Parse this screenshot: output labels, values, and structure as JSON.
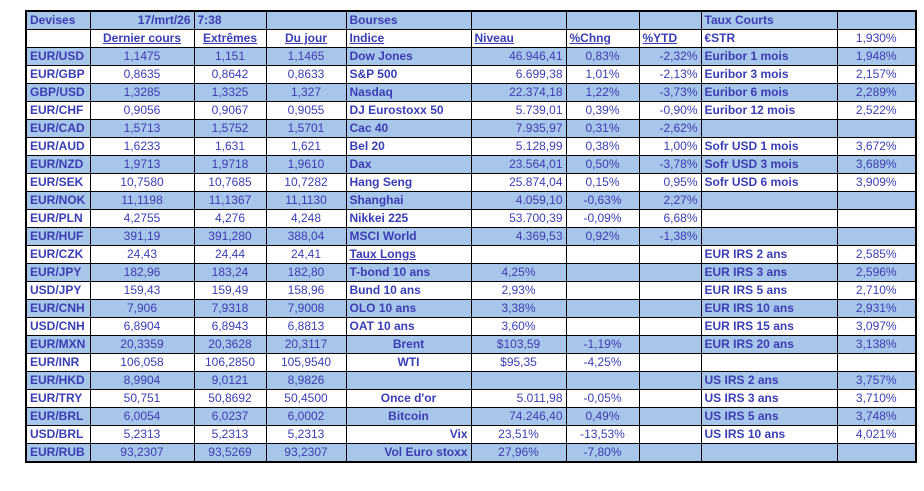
{
  "colors": {
    "row_blue": "#a8c6ea",
    "text_blue": "#3b3db5",
    "grid": "#000000"
  },
  "devises": {
    "title": "Devises",
    "date": "17/mrt/26",
    "time": "7:38",
    "headers": {
      "dernier": "Dernier cours",
      "extremes": "Extrêmes",
      "du_jour": "Du jour"
    },
    "rows": [
      {
        "pair": "EUR/USD",
        "dernier": "1,1475",
        "extremes": "1,151",
        "du_jour": "1,1465"
      },
      {
        "pair": "EUR/GBP",
        "dernier": "0,8635",
        "extremes": "0,8642",
        "du_jour": "0,8633"
      },
      {
        "pair": "GBP/USD",
        "dernier": "1,3285",
        "extremes": "1,3325",
        "du_jour": "1,327"
      },
      {
        "pair": "EUR/CHF",
        "dernier": "0,9056",
        "extremes": "0,9067",
        "du_jour": "0,9055"
      },
      {
        "pair": "EUR/CAD",
        "dernier": "1,5713",
        "extremes": "1,5752",
        "du_jour": "1,5701"
      },
      {
        "pair": "EUR/AUD",
        "dernier": "1,6233",
        "extremes": "1,631",
        "du_jour": "1,621"
      },
      {
        "pair": "EUR/NZD",
        "dernier": "1,9713",
        "extremes": "1,9718",
        "du_jour": "1,9610"
      },
      {
        "pair": "EUR/SEK",
        "dernier": "10,7580",
        "extremes": "10,7685",
        "du_jour": "10,7282"
      },
      {
        "pair": "EUR/NOK",
        "dernier": "11,1198",
        "extremes": "11,1367",
        "du_jour": "11,1130"
      },
      {
        "pair": "EUR/PLN",
        "dernier": "4,2755",
        "extremes": "4,276",
        "du_jour": "4,248"
      },
      {
        "pair": "EUR/HUF",
        "dernier": "391,19",
        "extremes": "391,280",
        "du_jour": "388,04"
      },
      {
        "pair": "EUR/CZK",
        "dernier": "24,43",
        "extremes": "24,44",
        "du_jour": "24,41"
      },
      {
        "pair": "EUR/JPY",
        "dernier": "182,96",
        "extremes": "183,24",
        "du_jour": "182,80"
      },
      {
        "pair": "USD/JPY",
        "dernier": "159,43",
        "extremes": "159,49",
        "du_jour": "158,96"
      },
      {
        "pair": "EUR/CNH",
        "dernier": "7,906",
        "extremes": "7,9318",
        "du_jour": "7,9008"
      },
      {
        "pair": "USD/CNH",
        "dernier": "6,8904",
        "extremes": "6,8943",
        "du_jour": "6,8813"
      },
      {
        "pair": "EUR/MXN",
        "dernier": "20,3359",
        "extremes": "20,3628",
        "du_jour": "20,3117"
      },
      {
        "pair": "EUR/INR",
        "dernier": "106,058",
        "extremes": "106,2850",
        "du_jour": "105,9540"
      },
      {
        "pair": "EUR/HKD",
        "dernier": "8,9904",
        "extremes": "9,0121",
        "du_jour": "8,9826"
      },
      {
        "pair": "EUR/TRY",
        "dernier": "50,751",
        "extremes": "50,8692",
        "du_jour": "50,4500"
      },
      {
        "pair": "EUR/BRL",
        "dernier": "6,0054",
        "extremes": "6,0237",
        "du_jour": "6,0002"
      },
      {
        "pair": "USD/BRL",
        "dernier": "5,2313",
        "extremes": "5,2313",
        "du_jour": "5,2313"
      },
      {
        "pair": "EUR/RUB",
        "dernier": "93,2307",
        "extremes": "93,5269",
        "du_jour": "93,2307"
      }
    ]
  },
  "bourses": {
    "title": "Bourses",
    "headers": {
      "indice": "Indice",
      "niveau": "Niveau",
      "chng": "%Chng",
      "ytd": "%YTD"
    },
    "rows": [
      {
        "name": "Dow Jones",
        "niveau": "46.946,41",
        "chng": "0,83%",
        "ytd": "-2,32%"
      },
      {
        "name": "S&P 500",
        "niveau": "6.699,38",
        "chng": "1,01%",
        "ytd": "-2,13%"
      },
      {
        "name": "Nasdaq",
        "niveau": "22.374,18",
        "chng": "1,22%",
        "ytd": "-3,73%"
      },
      {
        "name": "DJ Eurostoxx 50",
        "niveau": "5.739,01",
        "chng": "0,39%",
        "ytd": "-0,90%"
      },
      {
        "name": "Cac 40",
        "niveau": "7.935,97",
        "chng": "0,31%",
        "ytd": "-2,62%"
      },
      {
        "name": "Bel 20",
        "niveau": "5.128,99",
        "chng": "0,38%",
        "ytd": "1,00%"
      },
      {
        "name": "Dax",
        "niveau": "23.564,01",
        "chng": "0,50%",
        "ytd": "-3,78%"
      },
      {
        "name": "Hang Seng",
        "niveau": "25.874,04",
        "chng": "0,15%",
        "ytd": "0,95%"
      },
      {
        "name": "Shanghai",
        "niveau": "4.059,10",
        "chng": "-0,63%",
        "ytd": "2,27%"
      },
      {
        "name": "Nikkei 225",
        "niveau": "53.700,39",
        "chng": "-0,09%",
        "ytd": "6,68%"
      },
      {
        "name": "MSCI World",
        "niveau": "4.369,53",
        "chng": "0,92%",
        "ytd": "-1,38%"
      },
      {
        "name": "Taux Longs",
        "niveau": "",
        "chng": "",
        "ytd": "",
        "underline": true
      },
      {
        "name": "T-bond 10 ans",
        "niveau": "4,25%",
        "chng": "",
        "ytd": ""
      },
      {
        "name": "Bund 10 ans",
        "niveau": "2,93%",
        "chng": "",
        "ytd": ""
      },
      {
        "name": "OLO 10 ans",
        "niveau": "3,38%",
        "chng": "",
        "ytd": ""
      },
      {
        "name": "OAT 10 ans",
        "niveau": "3,60%",
        "chng": "",
        "ytd": ""
      },
      {
        "name": "Brent",
        "niveau": "$103,59",
        "chng": "-1,19%",
        "ytd": "",
        "align": "center"
      },
      {
        "name": "WTI",
        "niveau": "$95,35",
        "chng": "-4,25%",
        "ytd": "",
        "align": "center"
      },
      {
        "name": "",
        "niveau": "",
        "chng": "",
        "ytd": ""
      },
      {
        "name": "Once d'or",
        "niveau": "5.011,98",
        "chng": "-0,05%",
        "ytd": "",
        "align": "center"
      },
      {
        "name": "Bitcoin",
        "niveau": "74.246,40",
        "chng": "0,49%",
        "ytd": "",
        "align": "center"
      },
      {
        "name": "Vix",
        "niveau": "23,51%",
        "chng": "-13,53%",
        "ytd": "",
        "align": "right"
      },
      {
        "name": "Vol Euro stoxx",
        "niveau": "27,96%",
        "chng": "-7,80%",
        "ytd": "",
        "align": "right"
      }
    ]
  },
  "taux_courts": {
    "title": "Taux Courts",
    "header": {
      "label": "€STR",
      "value": "1,930%"
    },
    "rows": [
      {
        "label": "Euribor 1 mois",
        "value": "1,948%"
      },
      {
        "label": "Euribor 3 mois",
        "value": "2,157%"
      },
      {
        "label": "Euribor 6 mois",
        "value": "2,289%"
      },
      {
        "label": "Euribor 12 mois",
        "value": "2,522%"
      },
      {
        "label": "",
        "value": ""
      },
      {
        "label": "Sofr USD 1 mois",
        "value": "3,672%"
      },
      {
        "label": "Sofr USD 3 mois",
        "value": "3,689%"
      },
      {
        "label": "Sofr USD 6 mois",
        "value": "3,909%"
      },
      {
        "label": "",
        "value": ""
      },
      {
        "label": "",
        "value": ""
      },
      {
        "label": "",
        "value": ""
      },
      {
        "label": "EUR IRS 2 ans",
        "value": "2,585%"
      },
      {
        "label": "EUR IRS 3 ans",
        "value": "2,596%"
      },
      {
        "label": "EUR IRS 5 ans",
        "value": "2,710%"
      },
      {
        "label": "EUR IRS 10 ans",
        "value": "2,931%"
      },
      {
        "label": "EUR IRS 15 ans",
        "value": "3,097%"
      },
      {
        "label": "EUR IRS 20 ans",
        "value": "3,138%"
      },
      {
        "label": "",
        "value": ""
      },
      {
        "label": "US IRS 2 ans",
        "value": "3,757%"
      },
      {
        "label": "US IRS 3 ans",
        "value": "3,710%"
      },
      {
        "label": "US IRS 5 ans",
        "value": "3,748%"
      },
      {
        "label": "US IRS 10 ans",
        "value": "4,021%"
      },
      {
        "label": "",
        "value": ""
      }
    ]
  }
}
